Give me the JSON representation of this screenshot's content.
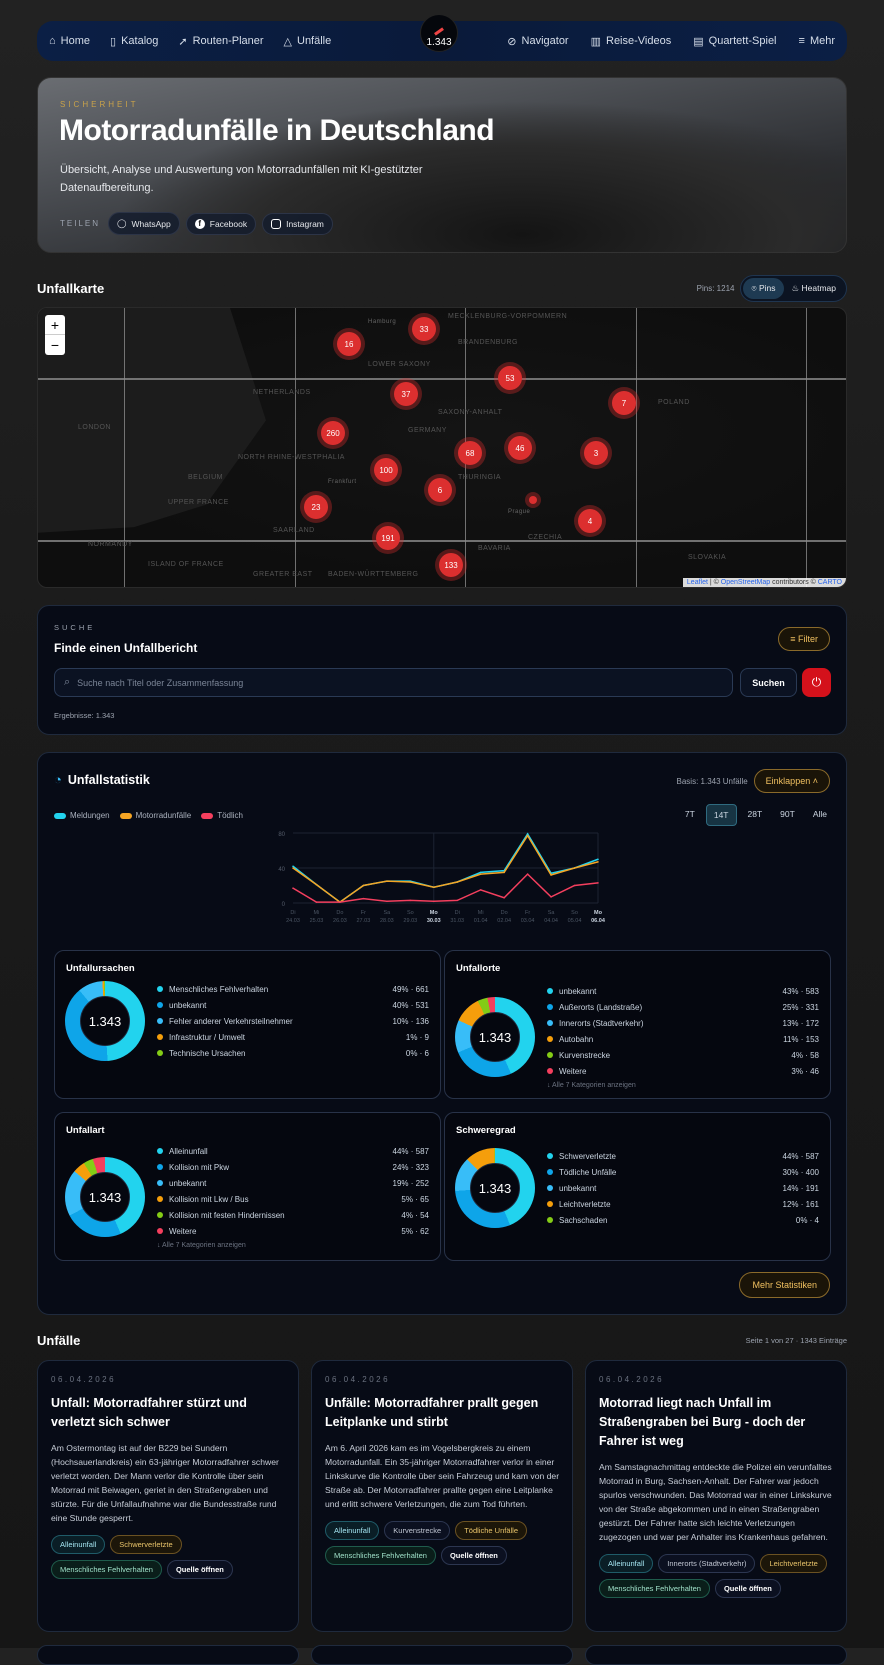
{
  "nav": {
    "left": [
      {
        "icon": "home-icon",
        "label": "Home"
      },
      {
        "icon": "book-icon",
        "label": "Katalog"
      },
      {
        "icon": "navigation-arrow-icon",
        "label": "Routen-Planer"
      },
      {
        "icon": "warning-triangle-icon",
        "label": "Unfälle"
      }
    ],
    "counter": "1.343",
    "right": [
      {
        "icon": "compass-icon",
        "label": "Navigator"
      },
      {
        "icon": "map-icon",
        "label": "Reise-Videos"
      },
      {
        "icon": "cards-icon",
        "label": "Quartett-Spiel"
      },
      {
        "icon": "menu-icon",
        "label": "Mehr"
      }
    ]
  },
  "hero": {
    "kicker": "SICHERHEIT",
    "title": "Motorradunfälle in Deutschland",
    "subtitle": "Übersicht, Analyse und Auswertung von Motorradunfällen mit KI-gestützter Datenaufbereitung.",
    "share_label": "TEILEN",
    "share": [
      "WhatsApp",
      "Facebook",
      "Instagram"
    ]
  },
  "map": {
    "title": "Unfallkarte",
    "pins_count": "Pins: 1214",
    "modes": [
      "Pins",
      "Heatmap"
    ],
    "active_mode": "Pins",
    "zoom_in": "+",
    "zoom_out": "−",
    "labels": [
      "MECKLENBURG-VORPOMMERN",
      "LOWER SAXONY",
      "BRANDENBURG",
      "NETHERLANDS",
      "SAXONY-ANHALT",
      "POLAND",
      "LONDON",
      "NORTH RHINE-WESTPHALIA",
      "GERMANY",
      "THURINGIA",
      "BELGIUM",
      "UPPER FRANCE",
      "CZECHIA",
      "SAARLAND",
      "NORMANDY",
      "ISLAND OF FRANCE",
      "GREATER EAST",
      "BADEN-WÜRTTEMBERG",
      "BAVARIA",
      "SLOVAKIA",
      "Hamburg",
      "Frankfurt",
      "Prague"
    ],
    "clusters": [
      "33",
      "16",
      "53",
      "37",
      "7",
      "260",
      "68",
      "46",
      "3",
      "100",
      "6",
      "23",
      "4",
      "191",
      "133"
    ],
    "attribution": {
      "leaflet": "Leaflet",
      "sep": " | © ",
      "osm": "OpenStreetMap",
      "mid": " contributors © ",
      "carto": "CARTO"
    }
  },
  "search": {
    "kicker": "SUCHE",
    "title": "Finde einen Unfallbericht",
    "filter": "Filter",
    "placeholder": "Suche nach Titel oder Zusammenfassung",
    "submit": "Suchen",
    "results": "Ergebnisse: 1.343"
  },
  "stats": {
    "title": "Unfallstatistik",
    "basis": "Basis: 1.343 Unfälle",
    "collapse": "Einklappen",
    "ranges": [
      "7T",
      "14T",
      "28T",
      "90T",
      "Alle"
    ],
    "active_range": "14T",
    "more": "Mehr Statistiken",
    "total": "1.343",
    "groups": [
      {
        "title": "Unfallursachen",
        "items": [
          [
            "Menschliches Fehlverhalten",
            "49% · 661",
            49,
            "#22d3ee"
          ],
          [
            "unbekannt",
            "40% · 531",
            40,
            "#0ea5e9"
          ],
          [
            "Fehler anderer Verkehrsteilnehmer",
            "10% · 136",
            10,
            "#38bdf8"
          ],
          [
            "Infrastruktur / Umwelt",
            "1% · 9",
            0.7,
            "#f59e0b"
          ],
          [
            "Technische Ursachen",
            "0% · 6",
            0.4,
            "#84cc16"
          ]
        ]
      },
      {
        "title": "Unfallorte",
        "items": [
          [
            "unbekannt",
            "43% · 583",
            43,
            "#22d3ee"
          ],
          [
            "Außerorts (Landstraße)",
            "25% · 331",
            25,
            "#0ea5e9"
          ],
          [
            "Innerorts (Stadtverkehr)",
            "13% · 172",
            13,
            "#38bdf8"
          ],
          [
            "Autobahn",
            "11% · 153",
            11,
            "#f59e0b"
          ],
          [
            "Kurvenstrecke",
            "4% · 58",
            4,
            "#84cc16"
          ],
          [
            "Weitere",
            "3% · 46",
            3,
            "#f43f5e"
          ]
        ],
        "more": "↓ Alle 7 Kategorien anzeigen"
      },
      {
        "title": "Unfallart",
        "items": [
          [
            "Alleinunfall",
            "44% · 587",
            44,
            "#22d3ee"
          ],
          [
            "Kollision mit Pkw",
            "24% · 323",
            24,
            "#0ea5e9"
          ],
          [
            "unbekannt",
            "19% · 252",
            19,
            "#38bdf8"
          ],
          [
            "Kollision mit Lkw / Bus",
            "5% · 65",
            5,
            "#f59e0b"
          ],
          [
            "Kollision mit festen Hindernissen",
            "4% · 54",
            4,
            "#84cc16"
          ],
          [
            "Weitere",
            "5% · 62",
            5,
            "#f43f5e"
          ]
        ],
        "more": "↓ Alle 7 Kategorien anzeigen"
      },
      {
        "title": "Schweregrad",
        "items": [
          [
            "Schwerverletzte",
            "44% · 587",
            44,
            "#22d3ee"
          ],
          [
            "Tödliche Unfälle",
            "30% · 400",
            30,
            "#0ea5e9"
          ],
          [
            "unbekannt",
            "14% · 191",
            14,
            "#38bdf8"
          ],
          [
            "Leichtverletzte",
            "12% · 161",
            12,
            "#f59e0b"
          ],
          [
            "Sachschaden",
            "0% · 4",
            0.3,
            "#84cc16"
          ]
        ]
      }
    ]
  },
  "chart_data": {
    "type": "line",
    "x": [
      "Di 24.03",
      "Mi 25.03",
      "Do 26.03",
      "Fr 27.03",
      "Sa 28.03",
      "So 29.03",
      "Mo 30.03",
      "Di 31.03",
      "Mi 01.04",
      "Do 02.04",
      "Fr 03.04",
      "Sa 04.04",
      "So 05.04",
      "Mo 06.04"
    ],
    "ylim": [
      0,
      80
    ],
    "yticks": [
      "0",
      "40",
      "80"
    ],
    "grid": true,
    "legend": "top-left",
    "series": [
      {
        "name": "Meldungen",
        "color": "#22d3ee",
        "values": [
          42,
          21,
          1,
          20,
          25,
          25,
          18,
          24,
          35,
          37,
          79,
          34,
          40,
          50
        ]
      },
      {
        "name": "Motorradunfälle",
        "color": "#f5a524",
        "values": [
          40,
          21,
          1,
          20,
          25,
          24,
          18,
          24,
          33,
          35,
          77,
          32,
          40,
          47
        ]
      },
      {
        "name": "Tödlich",
        "color": "#f43f5e",
        "values": [
          17,
          1,
          1,
          5,
          2,
          3,
          2,
          3,
          15,
          6,
          33,
          7,
          20,
          23
        ]
      }
    ]
  },
  "accidents": {
    "title": "Unfälle",
    "pagination": "Seite 1 von 27 · 1343 Einträge",
    "source": "Quelle öffnen",
    "items": [
      {
        "date": "06.04.2026",
        "title": "Unfall: Motorradfahrer stürzt und verletzt sich schwer",
        "summary": "Am Ostermontag ist auf der B229 bei Sundern (Hochsauerlandkreis) ein 63-jähriger Motorradfahrer schwer verletzt worden. Der Mann verlor die Kontrolle über sein Motorrad mit Beiwagen, geriet in den Straßengraben und stürzte. Für die Unfallaufnahme war die Bundesstraße rund eine Stunde gesperrt.",
        "tags": [
          [
            "Alleinunfall",
            "c"
          ],
          [
            "Schwerverletzte",
            "o"
          ],
          [
            "Menschliches Fehlverhalten",
            "g"
          ]
        ]
      },
      {
        "date": "06.04.2026",
        "title": "Unfälle: Motorradfahrer prallt gegen Leitplanke und stirbt",
        "summary": "Am 6. April 2026 kam es im Vogelsbergkreis zu einem Motorradunfall. Ein 35-jähriger Motorradfahrer verlor in einer Linkskurve die Kontrolle über sein Fahrzeug und kam von der Straße ab. Der Motorradfahrer prallte gegen eine Leitplanke und erlitt schwere Verletzungen, die zum Tod führten.",
        "tags": [
          [
            "Alleinunfall",
            "c"
          ],
          [
            "Kurvenstrecke",
            "n"
          ],
          [
            "Tödliche Unfälle",
            "o"
          ],
          [
            "Menschliches Fehlverhalten",
            "g"
          ]
        ]
      },
      {
        "date": "06.04.2026",
        "title": "Motorrad liegt nach Unfall im Straßengraben bei Burg - doch der Fahrer ist weg",
        "summary": "Am Samstagnachmittag entdeckte die Polizei ein verunfalltes Motorrad in Burg, Sachsen-Anhalt. Der Fahrer war jedoch spurlos verschwunden. Das Motorrad war in einer Linkskurve von der Straße abgekommen und in einen Straßengraben gestürzt. Der Fahrer hatte sich leichte Verletzungen zugezogen und war per Anhalter ins Krankenhaus gefahren.",
        "tags": [
          [
            "Alleinunfall",
            "c"
          ],
          [
            "Innerorts (Stadtverkehr)",
            "n"
          ],
          [
            "Leichtverletzte",
            "o"
          ],
          [
            "Menschliches Fehlverhalten",
            "g"
          ]
        ]
      }
    ]
  }
}
